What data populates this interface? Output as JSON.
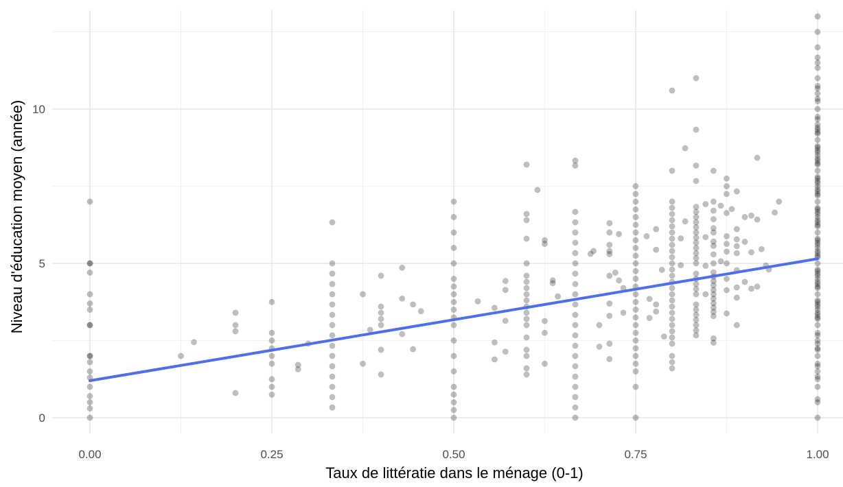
{
  "chart_data": {
    "type": "scatter",
    "xlabel": "Taux de littératie dans le ménage (0-1)",
    "ylabel": "Niveau d'éducation moyen (année)",
    "xlim": [
      -0.05,
      1.05
    ],
    "ylim": [
      -0.5,
      13.5
    ],
    "x_ticks": [
      0.0,
      0.25,
      0.5,
      0.75,
      1.0
    ],
    "x_tick_labels": [
      "0.00",
      "0.25",
      "0.50",
      "0.75",
      "1.00"
    ],
    "y_ticks": [
      0,
      5,
      10
    ],
    "y_tick_labels": [
      "0",
      "5",
      "10"
    ],
    "grid": true,
    "point_color": "#000000",
    "point_opacity": 0.25,
    "points": [
      [
        0,
        0
      ],
      [
        0,
        0.3
      ],
      [
        0,
        0.5
      ],
      [
        0,
        0.7
      ],
      [
        0,
        1
      ],
      [
        0,
        1.3
      ],
      [
        0,
        1.5
      ],
      [
        0,
        1.8
      ],
      [
        0,
        2
      ],
      [
        0,
        2
      ],
      [
        0,
        3
      ],
      [
        0,
        3
      ],
      [
        0,
        3.5
      ],
      [
        0,
        3.7
      ],
      [
        0,
        4
      ],
      [
        0,
        4.7
      ],
      [
        0,
        5
      ],
      [
        0,
        5
      ],
      [
        0,
        7
      ],
      [
        0.125,
        2
      ],
      [
        0.143,
        2.45
      ],
      [
        0.2,
        0.8
      ],
      [
        0.2,
        2.8
      ],
      [
        0.2,
        3
      ],
      [
        0.2,
        3.4
      ],
      [
        0.25,
        0.75
      ],
      [
        0.25,
        1
      ],
      [
        0.25,
        1.25
      ],
      [
        0.25,
        1.75
      ],
      [
        0.25,
        2
      ],
      [
        0.25,
        2.25
      ],
      [
        0.25,
        2.5
      ],
      [
        0.25,
        2.75
      ],
      [
        0.25,
        3.75
      ],
      [
        0.286,
        1.57
      ],
      [
        0.286,
        1.71
      ],
      [
        0.3,
        2.4
      ],
      [
        0.333,
        0.33
      ],
      [
        0.333,
        0.67
      ],
      [
        0.333,
        1
      ],
      [
        0.333,
        1.33
      ],
      [
        0.333,
        1.67
      ],
      [
        0.333,
        2
      ],
      [
        0.333,
        2.33
      ],
      [
        0.333,
        2.67
      ],
      [
        0.333,
        3
      ],
      [
        0.333,
        3.33
      ],
      [
        0.333,
        3.67
      ],
      [
        0.333,
        4
      ],
      [
        0.333,
        4.33
      ],
      [
        0.333,
        4.67
      ],
      [
        0.333,
        5
      ],
      [
        0.333,
        6.33
      ],
      [
        0.375,
        1.75
      ],
      [
        0.375,
        4
      ],
      [
        0.385,
        2.85
      ],
      [
        0.4,
        1.4
      ],
      [
        0.4,
        2.2
      ],
      [
        0.4,
        3
      ],
      [
        0.4,
        3.2
      ],
      [
        0.4,
        3.4
      ],
      [
        0.4,
        3.6
      ],
      [
        0.4,
        4.6
      ],
      [
        0.429,
        2.71
      ],
      [
        0.429,
        3.86
      ],
      [
        0.429,
        4.86
      ],
      [
        0.444,
        3.67
      ],
      [
        0.444,
        2.22
      ],
      [
        0.455,
        3.45
      ],
      [
        0.5,
        0
      ],
      [
        0.5,
        0.25
      ],
      [
        0.5,
        0.5
      ],
      [
        0.5,
        0.75
      ],
      [
        0.5,
        1
      ],
      [
        0.5,
        1.5
      ],
      [
        0.5,
        2
      ],
      [
        0.5,
        2.5
      ],
      [
        0.5,
        3
      ],
      [
        0.5,
        3.25
      ],
      [
        0.5,
        3.5
      ],
      [
        0.5,
        3.75
      ],
      [
        0.5,
        4
      ],
      [
        0.5,
        4.25
      ],
      [
        0.5,
        4.5
      ],
      [
        0.5,
        5
      ],
      [
        0.5,
        5.5
      ],
      [
        0.5,
        6
      ],
      [
        0.5,
        6.5
      ],
      [
        0.5,
        7
      ],
      [
        0.533,
        3.77
      ],
      [
        0.556,
        1.89
      ],
      [
        0.556,
        2.44
      ],
      [
        0.556,
        3.56
      ],
      [
        0.571,
        2.14
      ],
      [
        0.571,
        4.14
      ],
      [
        0.571,
        4.43
      ],
      [
        0.571,
        3.14
      ],
      [
        0.6,
        1.4
      ],
      [
        0.6,
        1.6
      ],
      [
        0.6,
        2
      ],
      [
        0.6,
        2.2
      ],
      [
        0.6,
        2.6
      ],
      [
        0.6,
        3
      ],
      [
        0.6,
        3.2
      ],
      [
        0.6,
        3.4
      ],
      [
        0.6,
        3.6
      ],
      [
        0.6,
        3.8
      ],
      [
        0.6,
        4
      ],
      [
        0.6,
        4.2
      ],
      [
        0.6,
        4.4
      ],
      [
        0.6,
        4.6
      ],
      [
        0.6,
        5
      ],
      [
        0.6,
        5.8
      ],
      [
        0.6,
        6.4
      ],
      [
        0.6,
        6.6
      ],
      [
        0.6,
        8.2
      ],
      [
        0.615,
        7.38
      ],
      [
        0.625,
        1.75
      ],
      [
        0.625,
        2.75
      ],
      [
        0.625,
        3.13
      ],
      [
        0.625,
        5.63
      ],
      [
        0.625,
        5.75
      ],
      [
        0.636,
        4.36
      ],
      [
        0.636,
        4.45
      ],
      [
        0.643,
        3.93
      ],
      [
        0.667,
        0
      ],
      [
        0.667,
        0.33
      ],
      [
        0.667,
        0.67
      ],
      [
        0.667,
        1
      ],
      [
        0.667,
        1.33
      ],
      [
        0.667,
        1.67
      ],
      [
        0.667,
        2
      ],
      [
        0.667,
        2.33
      ],
      [
        0.667,
        2.67
      ],
      [
        0.667,
        3
      ],
      [
        0.667,
        3.33
      ],
      [
        0.667,
        3.67
      ],
      [
        0.667,
        4
      ],
      [
        0.667,
        4.33
      ],
      [
        0.667,
        4.67
      ],
      [
        0.667,
        5
      ],
      [
        0.667,
        5.33
      ],
      [
        0.667,
        5.67
      ],
      [
        0.667,
        6
      ],
      [
        0.667,
        6.33
      ],
      [
        0.667,
        6.67
      ],
      [
        0.667,
        8.17
      ],
      [
        0.667,
        8.33
      ],
      [
        0.688,
        5.31
      ],
      [
        0.692,
        5.4
      ],
      [
        0.7,
        2.3
      ],
      [
        0.7,
        3
      ],
      [
        0.714,
        1.9
      ],
      [
        0.714,
        2.4
      ],
      [
        0.714,
        3.3
      ],
      [
        0.714,
        3.7
      ],
      [
        0.714,
        4.6
      ],
      [
        0.714,
        5.3
      ],
      [
        0.714,
        5.4
      ],
      [
        0.714,
        5.6
      ],
      [
        0.714,
        6
      ],
      [
        0.714,
        6.3
      ],
      [
        0.722,
        4.7
      ],
      [
        0.727,
        4.45
      ],
      [
        0.727,
        5.95
      ],
      [
        0.733,
        3.4
      ],
      [
        0.733,
        4.2
      ],
      [
        0.75,
        0
      ],
      [
        0.75,
        1
      ],
      [
        0.75,
        1.5
      ],
      [
        0.75,
        1.75
      ],
      [
        0.75,
        2
      ],
      [
        0.75,
        2.25
      ],
      [
        0.75,
        2.5
      ],
      [
        0.75,
        2.75
      ],
      [
        0.75,
        3
      ],
      [
        0.75,
        3.25
      ],
      [
        0.75,
        3.5
      ],
      [
        0.75,
        3.75
      ],
      [
        0.75,
        4
      ],
      [
        0.75,
        4.25
      ],
      [
        0.75,
        4.5
      ],
      [
        0.75,
        4.75
      ],
      [
        0.75,
        5
      ],
      [
        0.75,
        5.25
      ],
      [
        0.75,
        5.5
      ],
      [
        0.75,
        5.75
      ],
      [
        0.75,
        6
      ],
      [
        0.75,
        6.25
      ],
      [
        0.75,
        6.5
      ],
      [
        0.75,
        6.75
      ],
      [
        0.75,
        7
      ],
      [
        0.75,
        7.25
      ],
      [
        0.75,
        7.5
      ],
      [
        0.765,
        5.88
      ],
      [
        0.769,
        3.23
      ],
      [
        0.769,
        3.85
      ],
      [
        0.778,
        3.44
      ],
      [
        0.778,
        3.67
      ],
      [
        0.778,
        5.44
      ],
      [
        0.778,
        6.11
      ],
      [
        0.786,
        4.79
      ],
      [
        0.789,
        2.63
      ],
      [
        0.8,
        1.6
      ],
      [
        0.8,
        1.8
      ],
      [
        0.8,
        2
      ],
      [
        0.8,
        2.4
      ],
      [
        0.8,
        2.6
      ],
      [
        0.8,
        2.8
      ],
      [
        0.8,
        3
      ],
      [
        0.8,
        3.2
      ],
      [
        0.8,
        3.4
      ],
      [
        0.8,
        3.6
      ],
      [
        0.8,
        3.8
      ],
      [
        0.8,
        4
      ],
      [
        0.8,
        4.2
      ],
      [
        0.8,
        4.4
      ],
      [
        0.8,
        4.6
      ],
      [
        0.8,
        4.8
      ],
      [
        0.8,
        5
      ],
      [
        0.8,
        5.2
      ],
      [
        0.8,
        5.4
      ],
      [
        0.8,
        5.6
      ],
      [
        0.8,
        5.8
      ],
      [
        0.8,
        6
      ],
      [
        0.8,
        6.2
      ],
      [
        0.8,
        6.4
      ],
      [
        0.8,
        6.6
      ],
      [
        0.8,
        6.8
      ],
      [
        0.8,
        7
      ],
      [
        0.8,
        8
      ],
      [
        0.8,
        10.6
      ],
      [
        0.812,
        4.94
      ],
      [
        0.812,
        5.81
      ],
      [
        0.818,
        8.73
      ],
      [
        0.818,
        6.36
      ],
      [
        0.833,
        2.67
      ],
      [
        0.833,
        2.83
      ],
      [
        0.833,
        3
      ],
      [
        0.833,
        3.17
      ],
      [
        0.833,
        3.33
      ],
      [
        0.833,
        3.5
      ],
      [
        0.833,
        3.67
      ],
      [
        0.833,
        4
      ],
      [
        0.833,
        4.17
      ],
      [
        0.833,
        4.33
      ],
      [
        0.833,
        4.5
      ],
      [
        0.833,
        4.67
      ],
      [
        0.833,
        5
      ],
      [
        0.833,
        5.17
      ],
      [
        0.833,
        5.33
      ],
      [
        0.833,
        5.5
      ],
      [
        0.833,
        5.67
      ],
      [
        0.833,
        5.83
      ],
      [
        0.833,
        6
      ],
      [
        0.833,
        6.17
      ],
      [
        0.833,
        6.33
      ],
      [
        0.833,
        6.5
      ],
      [
        0.833,
        6.67
      ],
      [
        0.833,
        6.83
      ],
      [
        0.833,
        7.67
      ],
      [
        0.833,
        8.17
      ],
      [
        0.833,
        9.33
      ],
      [
        0.833,
        11
      ],
      [
        0.846,
        4
      ],
      [
        0.846,
        5.85
      ],
      [
        0.846,
        6.92
      ],
      [
        0.846,
        4.92
      ],
      [
        0.857,
        2.43
      ],
      [
        0.857,
        2.57
      ],
      [
        0.857,
        3.29
      ],
      [
        0.857,
        3.43
      ],
      [
        0.857,
        3.57
      ],
      [
        0.857,
        3.71
      ],
      [
        0.857,
        3.86
      ],
      [
        0.857,
        4
      ],
      [
        0.857,
        4.14
      ],
      [
        0.857,
        4.29
      ],
      [
        0.857,
        4.43
      ],
      [
        0.857,
        4.57
      ],
      [
        0.857,
        4.71
      ],
      [
        0.857,
        5
      ],
      [
        0.857,
        5.29
      ],
      [
        0.857,
        5.57
      ],
      [
        0.857,
        5.71
      ],
      [
        0.857,
        6
      ],
      [
        0.857,
        6.14
      ],
      [
        0.857,
        6.43
      ],
      [
        0.857,
        6.71
      ],
      [
        0.857,
        7
      ],
      [
        0.857,
        8
      ],
      [
        0.867,
        5.07
      ],
      [
        0.867,
        6.87
      ],
      [
        0.875,
        3.38
      ],
      [
        0.875,
        4.13
      ],
      [
        0.875,
        4.5
      ],
      [
        0.875,
        5
      ],
      [
        0.875,
        5.38
      ],
      [
        0.875,
        5.63
      ],
      [
        0.875,
        5.88
      ],
      [
        0.875,
        6.63
      ],
      [
        0.875,
        7.25
      ],
      [
        0.875,
        7.5
      ],
      [
        0.875,
        7.75
      ],
      [
        0.882,
        6.76
      ],
      [
        0.889,
        3
      ],
      [
        0.889,
        3.89
      ],
      [
        0.889,
        4.22
      ],
      [
        0.889,
        4.78
      ],
      [
        0.889,
        5.33
      ],
      [
        0.889,
        5.56
      ],
      [
        0.889,
        5.78
      ],
      [
        0.889,
        6.11
      ],
      [
        0.889,
        7.33
      ],
      [
        0.9,
        4.4
      ],
      [
        0.9,
        5.7
      ],
      [
        0.9,
        6.5
      ],
      [
        0.909,
        4.18
      ],
      [
        0.909,
        5.36
      ],
      [
        0.909,
        6.55
      ],
      [
        0.917,
        4.25
      ],
      [
        0.917,
        6.42
      ],
      [
        0.917,
        8.42
      ],
      [
        0.923,
        5.46
      ],
      [
        0.929,
        4.93
      ],
      [
        0.933,
        4.8
      ],
      [
        0.941,
        6.65
      ],
      [
        0.947,
        7
      ],
      [
        1,
        0
      ],
      [
        1,
        0.5
      ],
      [
        1,
        0.6
      ],
      [
        1,
        1
      ],
      [
        1,
        1.25
      ],
      [
        1,
        1.33
      ],
      [
        1,
        1.5
      ],
      [
        1,
        1.67
      ],
      [
        1,
        1.75
      ],
      [
        1,
        2
      ],
      [
        1,
        2.2
      ],
      [
        1,
        2.25
      ],
      [
        1,
        2.4
      ],
      [
        1,
        2.5
      ],
      [
        1,
        2.67
      ],
      [
        1,
        2.75
      ],
      [
        1,
        3
      ],
      [
        1,
        3.2
      ],
      [
        1,
        3.25
      ],
      [
        1,
        3.33
      ],
      [
        1,
        3.4
      ],
      [
        1,
        3.5
      ],
      [
        1,
        3.6
      ],
      [
        1,
        3.67
      ],
      [
        1,
        3.75
      ],
      [
        1,
        3.8
      ],
      [
        1,
        4
      ],
      [
        1,
        4.2
      ],
      [
        1,
        4.25
      ],
      [
        1,
        4.33
      ],
      [
        1,
        4.4
      ],
      [
        1,
        4.5
      ],
      [
        1,
        4.6
      ],
      [
        1,
        4.67
      ],
      [
        1,
        4.75
      ],
      [
        1,
        4.8
      ],
      [
        1,
        5
      ],
      [
        1,
        5.2
      ],
      [
        1,
        5.25
      ],
      [
        1,
        5.33
      ],
      [
        1,
        5.4
      ],
      [
        1,
        5.5
      ],
      [
        1,
        5.6
      ],
      [
        1,
        5.67
      ],
      [
        1,
        5.75
      ],
      [
        1,
        5.8
      ],
      [
        1,
        6
      ],
      [
        1,
        6.2
      ],
      [
        1,
        6.25
      ],
      [
        1,
        6.33
      ],
      [
        1,
        6.4
      ],
      [
        1,
        6.5
      ],
      [
        1,
        6.6
      ],
      [
        1,
        6.67
      ],
      [
        1,
        6.75
      ],
      [
        1,
        6.8
      ],
      [
        1,
        7
      ],
      [
        1,
        7.2
      ],
      [
        1,
        7.25
      ],
      [
        1,
        7.33
      ],
      [
        1,
        7.4
      ],
      [
        1,
        7.5
      ],
      [
        1,
        7.6
      ],
      [
        1,
        7.67
      ],
      [
        1,
        7.75
      ],
      [
        1,
        7.8
      ],
      [
        1,
        8
      ],
      [
        1,
        8.2
      ],
      [
        1,
        8.25
      ],
      [
        1,
        8.33
      ],
      [
        1,
        8.4
      ],
      [
        1,
        8.5
      ],
      [
        1,
        8.6
      ],
      [
        1,
        8.67
      ],
      [
        1,
        8.75
      ],
      [
        1,
        8.8
      ],
      [
        1,
        9
      ],
      [
        1,
        9.2
      ],
      [
        1,
        9.25
      ],
      [
        1,
        9.33
      ],
      [
        1,
        9.4
      ],
      [
        1,
        9.5
      ],
      [
        1,
        9.67
      ],
      [
        1,
        9.75
      ],
      [
        1,
        10
      ],
      [
        1,
        10.25
      ],
      [
        1,
        10.33
      ],
      [
        1,
        10.5
      ],
      [
        1,
        10.67
      ],
      [
        1,
        10.75
      ],
      [
        1,
        11
      ],
      [
        1,
        11.33
      ],
      [
        1,
        11.5
      ],
      [
        1,
        11.67
      ],
      [
        1,
        12
      ],
      [
        1,
        12.5
      ],
      [
        1,
        13
      ]
    ],
    "trend_line": {
      "type": "linear",
      "color": "#4e6fe8",
      "x": [
        0,
        1
      ],
      "y": [
        1.2,
        5.15
      ]
    }
  }
}
